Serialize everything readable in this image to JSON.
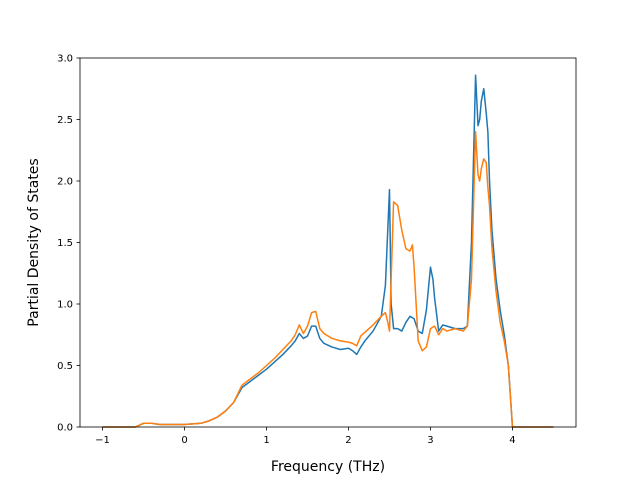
{
  "chart_data": {
    "type": "line",
    "title": "",
    "xlabel": "Frequency (THz)",
    "ylabel": "Partial Density of States",
    "xlim": [
      -1.275,
      4.775
    ],
    "ylim": [
      0.0,
      3.0
    ],
    "xticks": [
      -1,
      0,
      1,
      2,
      3,
      4
    ],
    "xtick_labels": [
      "−1",
      "0",
      "1",
      "2",
      "3",
      "4"
    ],
    "yticks": [
      0.0,
      0.5,
      1.0,
      1.5,
      2.0,
      2.5,
      3.0
    ],
    "ytick_labels": [
      "0.0",
      "0.5",
      "1.0",
      "1.5",
      "2.0",
      "2.5",
      "3.0"
    ],
    "grid": false,
    "legend": false,
    "series": [
      {
        "color": "#1f77b4",
        "x": [
          -1.0,
          -0.6,
          -0.5,
          -0.4,
          -0.3,
          -0.2,
          0.0,
          0.2,
          0.3,
          0.4,
          0.5,
          0.6,
          0.65,
          0.7,
          0.8,
          0.9,
          1.0,
          1.1,
          1.2,
          1.3,
          1.35,
          1.4,
          1.45,
          1.5,
          1.55,
          1.6,
          1.65,
          1.7,
          1.8,
          1.9,
          2.0,
          2.05,
          2.1,
          2.15,
          2.2,
          2.3,
          2.4,
          2.45,
          2.5,
          2.52,
          2.55,
          2.6,
          2.65,
          2.7,
          2.75,
          2.8,
          2.85,
          2.9,
          2.95,
          3.0,
          3.03,
          3.05,
          3.1,
          3.15,
          3.2,
          3.3,
          3.4,
          3.45,
          3.5,
          3.55,
          3.58,
          3.6,
          3.62,
          3.65,
          3.68,
          3.7,
          3.72,
          3.75,
          3.8,
          3.85,
          3.9,
          3.95,
          4.0,
          4.05,
          4.5
        ],
        "y": [
          0.0,
          0.0,
          0.03,
          0.03,
          0.02,
          0.02,
          0.02,
          0.03,
          0.05,
          0.08,
          0.13,
          0.2,
          0.26,
          0.32,
          0.37,
          0.42,
          0.47,
          0.53,
          0.59,
          0.66,
          0.7,
          0.76,
          0.72,
          0.74,
          0.82,
          0.82,
          0.72,
          0.68,
          0.65,
          0.63,
          0.64,
          0.62,
          0.59,
          0.65,
          0.7,
          0.78,
          0.9,
          1.15,
          1.93,
          1.0,
          0.8,
          0.8,
          0.78,
          0.85,
          0.9,
          0.88,
          0.78,
          0.76,
          0.95,
          1.3,
          1.2,
          1.05,
          0.78,
          0.83,
          0.82,
          0.8,
          0.8,
          0.82,
          1.5,
          2.86,
          2.45,
          2.5,
          2.65,
          2.75,
          2.55,
          2.4,
          2.0,
          1.6,
          1.2,
          0.95,
          0.75,
          0.5,
          0.0,
          0.0,
          0.0
        ]
      },
      {
        "color": "#ff7f0e",
        "x": [
          -1.0,
          -0.6,
          -0.5,
          -0.4,
          -0.3,
          -0.2,
          0.0,
          0.2,
          0.3,
          0.4,
          0.5,
          0.6,
          0.65,
          0.7,
          0.8,
          0.9,
          1.0,
          1.1,
          1.2,
          1.3,
          1.35,
          1.4,
          1.45,
          1.5,
          1.55,
          1.6,
          1.65,
          1.7,
          1.8,
          1.9,
          2.0,
          2.05,
          2.1,
          2.15,
          2.2,
          2.3,
          2.4,
          2.45,
          2.48,
          2.5,
          2.55,
          2.6,
          2.65,
          2.7,
          2.75,
          2.78,
          2.8,
          2.85,
          2.9,
          2.95,
          3.0,
          3.05,
          3.1,
          3.15,
          3.2,
          3.3,
          3.4,
          3.45,
          3.5,
          3.55,
          3.58,
          3.6,
          3.62,
          3.65,
          3.68,
          3.7,
          3.72,
          3.75,
          3.8,
          3.85,
          3.9,
          3.95,
          4.0,
          4.05,
          4.5
        ],
        "y": [
          0.0,
          0.0,
          0.03,
          0.03,
          0.02,
          0.02,
          0.02,
          0.03,
          0.05,
          0.08,
          0.13,
          0.2,
          0.27,
          0.34,
          0.39,
          0.44,
          0.5,
          0.56,
          0.63,
          0.7,
          0.75,
          0.83,
          0.76,
          0.82,
          0.93,
          0.94,
          0.8,
          0.76,
          0.72,
          0.7,
          0.69,
          0.68,
          0.66,
          0.74,
          0.77,
          0.83,
          0.9,
          0.93,
          0.85,
          0.78,
          1.83,
          1.8,
          1.6,
          1.45,
          1.43,
          1.48,
          1.3,
          0.7,
          0.62,
          0.65,
          0.8,
          0.82,
          0.75,
          0.8,
          0.78,
          0.8,
          0.78,
          0.82,
          1.2,
          2.4,
          2.05,
          2.0,
          2.1,
          2.18,
          2.15,
          1.95,
          1.8,
          1.45,
          1.1,
          0.85,
          0.7,
          0.5,
          0.0,
          0.0,
          0.0
        ]
      }
    ]
  }
}
